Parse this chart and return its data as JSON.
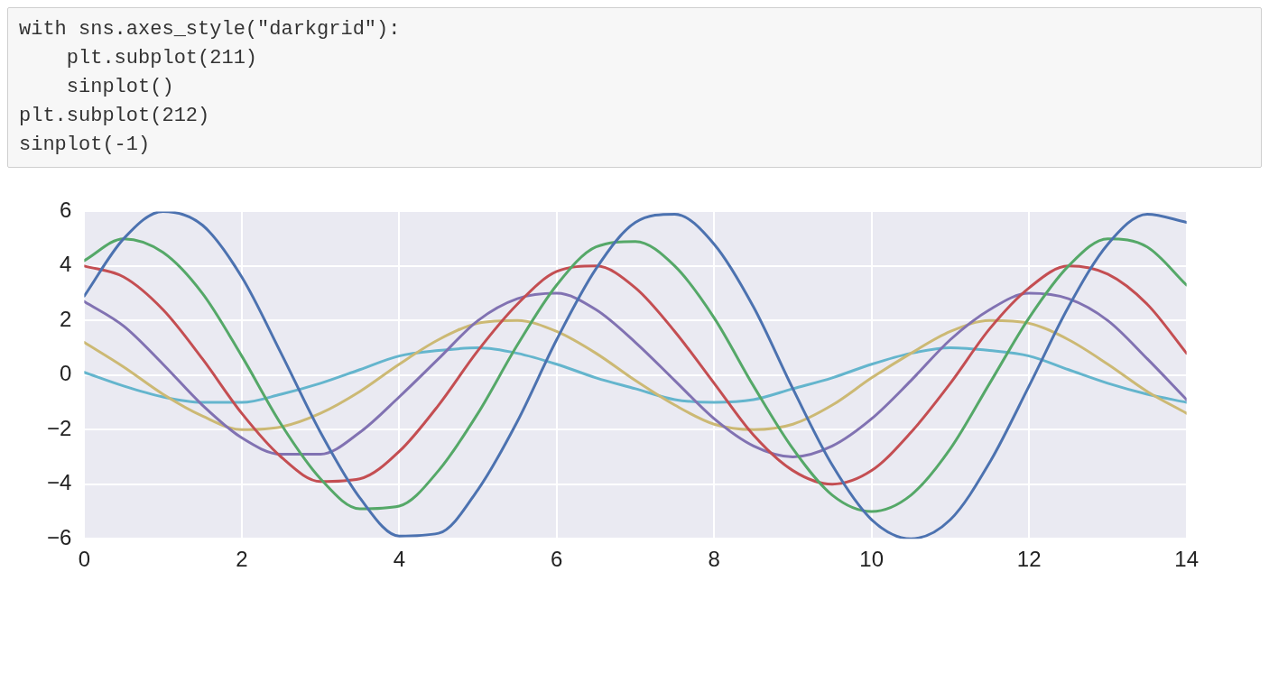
{
  "chart_data": {
    "type": "line",
    "annotations": [
      "with sns.axes_style(\"darkgrid\"):",
      "    plt.subplot(211)",
      "    sinplot()",
      "plt.subplot(212)",
      "sinplot(-1)"
    ],
    "x": [
      0,
      0.5,
      1,
      1.5,
      2,
      2.5,
      3,
      3.5,
      4,
      4.5,
      5,
      5.5,
      6,
      6.5,
      7,
      7.5,
      8,
      8.5,
      9,
      9.5,
      10,
      10.5,
      11,
      11.5,
      12,
      12.5,
      13,
      13.5,
      14
    ],
    "series": [
      {
        "color": "#4c72b0",
        "values": [
          2.9,
          5.0,
          6.0,
          5.5,
          3.6,
          0.8,
          -2.1,
          -4.5,
          -5.9,
          -5.8,
          -4.2,
          -1.7,
          1.3,
          3.9,
          5.6,
          5.9,
          4.8,
          2.5,
          -0.5,
          -3.3,
          -5.3,
          -6.0,
          -5.3,
          -3.2,
          -0.4,
          2.5,
          4.8,
          5.9,
          5.6
        ]
      },
      {
        "color": "#55a868",
        "values": [
          4.2,
          5.0,
          4.5,
          3.0,
          0.7,
          -1.8,
          -3.8,
          -4.9,
          -4.8,
          -3.5,
          -1.4,
          1.1,
          3.3,
          4.7,
          4.9,
          4.0,
          2.1,
          -0.4,
          -2.7,
          -4.4,
          -5.0,
          -4.4,
          -2.7,
          -0.3,
          2.1,
          4.0,
          5.0,
          4.7,
          3.3
        ]
      },
      {
        "color": "#c44e52",
        "values": [
          4.0,
          3.6,
          2.4,
          0.6,
          -1.4,
          -3.0,
          -3.9,
          -3.8,
          -2.8,
          -1.1,
          0.9,
          2.6,
          3.8,
          4.0,
          3.2,
          1.6,
          -0.3,
          -2.2,
          -3.5,
          -4.0,
          -3.5,
          -2.1,
          -0.3,
          1.7,
          3.2,
          4.0,
          3.7,
          2.6,
          0.8
        ]
      },
      {
        "color": "#8172b2",
        "values": [
          2.7,
          1.8,
          0.4,
          -1.1,
          -2.3,
          -2.9,
          -2.9,
          -2.1,
          -0.8,
          0.6,
          2.0,
          2.8,
          3.0,
          2.4,
          1.2,
          -0.2,
          -1.6,
          -2.6,
          -3.0,
          -2.6,
          -1.6,
          -0.2,
          1.3,
          2.4,
          3.0,
          2.8,
          2.0,
          0.6,
          -0.9
        ]
      },
      {
        "color": "#ccb974",
        "values": [
          1.2,
          0.3,
          -0.7,
          -1.5,
          -2.0,
          -1.9,
          -1.4,
          -0.6,
          0.4,
          1.3,
          1.9,
          2.0,
          1.6,
          0.8,
          -0.2,
          -1.1,
          -1.8,
          -2.0,
          -1.8,
          -1.1,
          -0.1,
          0.8,
          1.6,
          2.0,
          1.9,
          1.3,
          0.4,
          -0.6,
          -1.4
        ]
      },
      {
        "color": "#64b5cd",
        "values": [
          0.1,
          -0.4,
          -0.8,
          -1.0,
          -1.0,
          -0.7,
          -0.3,
          0.2,
          0.7,
          0.9,
          1.0,
          0.8,
          0.4,
          -0.1,
          -0.5,
          -0.9,
          -1.0,
          -0.9,
          -0.5,
          -0.1,
          0.4,
          0.8,
          1.0,
          0.9,
          0.7,
          0.2,
          -0.3,
          -0.7,
          -1.0
        ]
      }
    ],
    "xlim": [
      0,
      14
    ],
    "xticks": [
      0,
      2,
      4,
      6,
      8,
      10,
      12,
      14
    ],
    "ylim": [
      -6,
      6
    ],
    "yticks": [
      -6,
      -4,
      -2,
      0,
      2,
      4,
      6
    ],
    "grid": true,
    "legend": false,
    "marker": "none",
    "line_style": "solid"
  }
}
